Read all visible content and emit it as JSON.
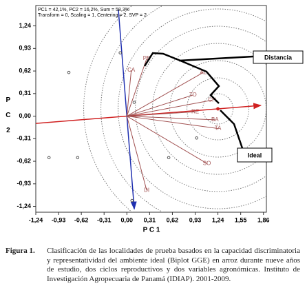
{
  "chart_data": {
    "type": "biplot",
    "header": [
      "PC1 = 42,1%, PC2 = 16,2%, Sum = 58,3%",
      "Transform = 0, Scaling = 1, Centering = 2, SVP = 2"
    ],
    "xlabel": "P C 1",
    "ylabel": "P C 2",
    "xlim": [
      -1.24,
      1.9
    ],
    "ylim": [
      -1.32,
      1.52
    ],
    "xticks": [
      {
        "value": -1.24,
        "label": "-1,24"
      },
      {
        "value": -0.93,
        "label": "-0,93"
      },
      {
        "value": -0.62,
        "label": "-0,62"
      },
      {
        "value": -0.31,
        "label": "-0,31"
      },
      {
        "value": 0,
        "label": "0,00"
      },
      {
        "value": 0.31,
        "label": "0,31"
      },
      {
        "value": 0.62,
        "label": "0,62"
      },
      {
        "value": 0.93,
        "label": "0,93"
      },
      {
        "value": 1.24,
        "label": "1,24"
      },
      {
        "value": 1.55,
        "label": "1,55"
      },
      {
        "value": 1.86,
        "label": "1,86"
      }
    ],
    "yticks": [
      {
        "value": 1.24,
        "label": "1,24"
      },
      {
        "value": 0.93,
        "label": "0,93"
      },
      {
        "value": 0.62,
        "label": "0,62"
      },
      {
        "value": 0.31,
        "label": "0,31"
      },
      {
        "value": 0,
        "label": "0,00"
      },
      {
        "value": -0.31,
        "label": "-0,31"
      },
      {
        "value": -0.62,
        "label": "-0,62"
      },
      {
        "value": -0.93,
        "label": "-0,93"
      },
      {
        "value": -1.24,
        "label": "-1,24"
      }
    ],
    "environments": {
      "color": "#a05050",
      "labels": [
        "CA",
        "PE",
        "AL",
        "TO",
        "CH",
        "RE",
        "BA",
        "TA",
        "SO",
        "DI"
      ],
      "x": [
        0.06,
        0.27,
        1.04,
        0.9,
        1.16,
        0.93,
        1.2,
        1.24,
        1.09,
        0.27
      ],
      "y": [
        0.63,
        0.79,
        0.6,
        0.29,
        0.22,
        0.06,
        -0.05,
        -0.17,
        -0.65,
        -1.02
      ]
    },
    "genotypes": {
      "color": "#555555",
      "x": [
        -0.09,
        -0.79,
        -1.06,
        -0.67,
        0.1,
        0.57,
        0.95,
        0.07
      ],
      "y": [
        0.87,
        0.6,
        -0.57,
        -0.57,
        0.19,
        -0.57,
        -0.3,
        -1.16
      ]
    },
    "ideal_point": {
      "x": 1.24,
      "y": 0.1
    },
    "annotations": [
      "Distancia",
      "Ideal"
    ]
  },
  "caption": {
    "label": "Figura 1.",
    "text": "Clasificación de las localidades de prueba basados en la capacidad discriminatoria y representatividad del ambiente ideal (Biplot GGE) en arroz durante nueve años de estudio, dos ciclos reproductivos y dos variables agronómicas. Instituto de Investigación Agropecuaria de Panamá (IDIAP). 2001-2009."
  }
}
